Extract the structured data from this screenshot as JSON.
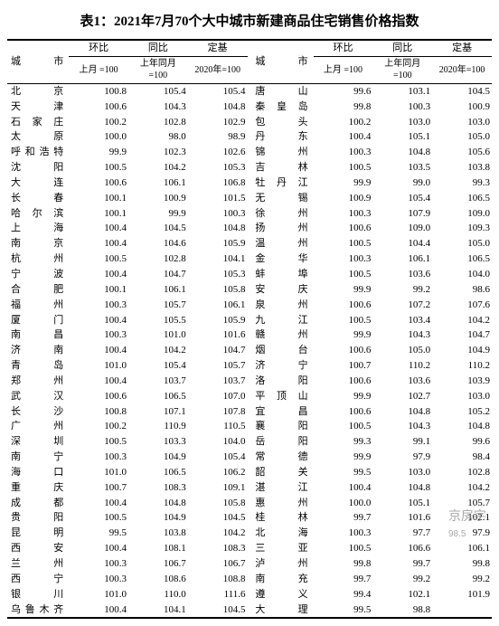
{
  "title": "表1：2021年7月70个大中城市新建商品住宅销售价格指数",
  "header": {
    "city": "城市",
    "mom": "环比",
    "yoy": "同比",
    "base": "定基",
    "mom_sub": "上月\n=100",
    "yoy_sub": "上年同月\n=100",
    "base_sub": "2020年=100"
  },
  "watermark": "京房字",
  "watermark_sub": "98.5",
  "left": [
    {
      "c": "北  京",
      "a": "100.8",
      "b": "105.4",
      "d": "105.4"
    },
    {
      "c": "天  津",
      "a": "100.6",
      "b": "104.3",
      "d": "104.8"
    },
    {
      "c": "石 家 庄",
      "a": "100.2",
      "b": "102.8",
      "d": "102.9"
    },
    {
      "c": "太  原",
      "a": "100.0",
      "b": "98.0",
      "d": "98.9"
    },
    {
      "c": "呼和浩特",
      "a": "99.9",
      "b": "102.3",
      "d": "102.6"
    },
    {
      "c": "沈  阳",
      "a": "100.5",
      "b": "104.2",
      "d": "105.3"
    },
    {
      "c": "大  连",
      "a": "100.6",
      "b": "106.1",
      "d": "106.8"
    },
    {
      "c": "长  春",
      "a": "100.1",
      "b": "100.9",
      "d": "101.5"
    },
    {
      "c": "哈 尔 滨",
      "a": "100.1",
      "b": "99.9",
      "d": "100.3"
    },
    {
      "c": "上  海",
      "a": "100.4",
      "b": "104.5",
      "d": "104.8"
    },
    {
      "c": "南  京",
      "a": "100.4",
      "b": "104.6",
      "d": "105.9"
    },
    {
      "c": "杭  州",
      "a": "100.5",
      "b": "102.8",
      "d": "104.1"
    },
    {
      "c": "宁  波",
      "a": "100.4",
      "b": "104.7",
      "d": "105.3"
    },
    {
      "c": "合  肥",
      "a": "100.1",
      "b": "106.1",
      "d": "105.8"
    },
    {
      "c": "福  州",
      "a": "100.3",
      "b": "105.7",
      "d": "106.1"
    },
    {
      "c": "厦  门",
      "a": "100.4",
      "b": "105.5",
      "d": "105.9"
    },
    {
      "c": "南  昌",
      "a": "100.3",
      "b": "101.0",
      "d": "101.6"
    },
    {
      "c": "济  南",
      "a": "100.4",
      "b": "104.2",
      "d": "104.7"
    },
    {
      "c": "青  岛",
      "a": "101.0",
      "b": "105.4",
      "d": "105.7"
    },
    {
      "c": "郑  州",
      "a": "100.4",
      "b": "103.7",
      "d": "103.7"
    },
    {
      "c": "武  汉",
      "a": "100.6",
      "b": "106.5",
      "d": "107.0"
    },
    {
      "c": "长  沙",
      "a": "100.8",
      "b": "107.1",
      "d": "107.8"
    },
    {
      "c": "广  州",
      "a": "100.2",
      "b": "110.9",
      "d": "110.5"
    },
    {
      "c": "深  圳",
      "a": "100.5",
      "b": "103.3",
      "d": "104.0"
    },
    {
      "c": "南  宁",
      "a": "100.3",
      "b": "104.9",
      "d": "105.4"
    },
    {
      "c": "海  口",
      "a": "101.0",
      "b": "106.5",
      "d": "106.2"
    },
    {
      "c": "重  庆",
      "a": "100.7",
      "b": "108.3",
      "d": "109.1"
    },
    {
      "c": "成  都",
      "a": "100.4",
      "b": "104.8",
      "d": "105.8"
    },
    {
      "c": "贵  阳",
      "a": "100.5",
      "b": "104.9",
      "d": "104.5"
    },
    {
      "c": "昆  明",
      "a": "99.5",
      "b": "103.8",
      "d": "104.2"
    },
    {
      "c": "西  安",
      "a": "100.4",
      "b": "108.1",
      "d": "108.3"
    },
    {
      "c": "兰  州",
      "a": "100.3",
      "b": "106.7",
      "d": "106.7"
    },
    {
      "c": "西  宁",
      "a": "100.3",
      "b": "108.6",
      "d": "108.8"
    },
    {
      "c": "银  川",
      "a": "101.0",
      "b": "110.0",
      "d": "111.6"
    },
    {
      "c": "乌鲁木齐",
      "a": "100.4",
      "b": "104.1",
      "d": "104.5"
    }
  ],
  "right": [
    {
      "c": "唐  山",
      "a": "99.6",
      "b": "103.1",
      "d": "104.5"
    },
    {
      "c": "秦 皇 岛",
      "a": "99.8",
      "b": "100.3",
      "d": "100.9"
    },
    {
      "c": "包  头",
      "a": "100.2",
      "b": "103.0",
      "d": "103.0"
    },
    {
      "c": "丹  东",
      "a": "100.4",
      "b": "105.1",
      "d": "105.0"
    },
    {
      "c": "锦  州",
      "a": "100.3",
      "b": "104.8",
      "d": "105.6"
    },
    {
      "c": "吉  林",
      "a": "100.5",
      "b": "103.5",
      "d": "103.8"
    },
    {
      "c": "牡 丹 江",
      "a": "99.9",
      "b": "99.0",
      "d": "99.3"
    },
    {
      "c": "无  锡",
      "a": "100.9",
      "b": "105.4",
      "d": "106.5"
    },
    {
      "c": "徐  州",
      "a": "100.3",
      "b": "107.9",
      "d": "109.0"
    },
    {
      "c": "扬  州",
      "a": "100.6",
      "b": "109.0",
      "d": "109.3"
    },
    {
      "c": "温  州",
      "a": "100.5",
      "b": "104.4",
      "d": "105.0"
    },
    {
      "c": "金  华",
      "a": "100.3",
      "b": "106.1",
      "d": "106.5"
    },
    {
      "c": "蚌  埠",
      "a": "100.5",
      "b": "103.6",
      "d": "104.0"
    },
    {
      "c": "安  庆",
      "a": "99.9",
      "b": "99.2",
      "d": "98.6"
    },
    {
      "c": "泉  州",
      "a": "100.6",
      "b": "107.2",
      "d": "107.6"
    },
    {
      "c": "九  江",
      "a": "100.5",
      "b": "103.4",
      "d": "104.2"
    },
    {
      "c": "赣  州",
      "a": "99.9",
      "b": "104.3",
      "d": "104.7"
    },
    {
      "c": "烟  台",
      "a": "100.6",
      "b": "105.0",
      "d": "104.9"
    },
    {
      "c": "济  宁",
      "a": "100.7",
      "b": "110.2",
      "d": "110.2"
    },
    {
      "c": "洛  阳",
      "a": "100.6",
      "b": "103.6",
      "d": "103.9"
    },
    {
      "c": "平 顶 山",
      "a": "99.9",
      "b": "102.7",
      "d": "103.0"
    },
    {
      "c": "宜  昌",
      "a": "100.6",
      "b": "104.8",
      "d": "105.2"
    },
    {
      "c": "襄  阳",
      "a": "100.5",
      "b": "104.3",
      "d": "104.8"
    },
    {
      "c": "岳  阳",
      "a": "99.3",
      "b": "99.1",
      "d": "99.6"
    },
    {
      "c": "常  德",
      "a": "99.9",
      "b": "97.9",
      "d": "98.4"
    },
    {
      "c": "韶  关",
      "a": "99.5",
      "b": "103.0",
      "d": "102.8"
    },
    {
      "c": "湛  江",
      "a": "100.4",
      "b": "104.8",
      "d": "104.2"
    },
    {
      "c": "惠  州",
      "a": "100.0",
      "b": "105.1",
      "d": "105.7"
    },
    {
      "c": "桂  林",
      "a": "99.7",
      "b": "101.6",
      "d": "102.1"
    },
    {
      "c": "北  海",
      "a": "100.3",
      "b": "97.7",
      "d": "97.9"
    },
    {
      "c": "三  亚",
      "a": "100.5",
      "b": "106.6",
      "d": "106.1"
    },
    {
      "c": "泸  州",
      "a": "99.8",
      "b": "99.7",
      "d": "99.8"
    },
    {
      "c": "南  充",
      "a": "99.7",
      "b": "99.2",
      "d": "99.2"
    },
    {
      "c": "遵  义",
      "a": "99.4",
      "b": "102.1",
      "d": "101.9"
    },
    {
      "c": "大  理",
      "a": "99.5",
      "b": "98.8",
      "d": ""
    }
  ]
}
